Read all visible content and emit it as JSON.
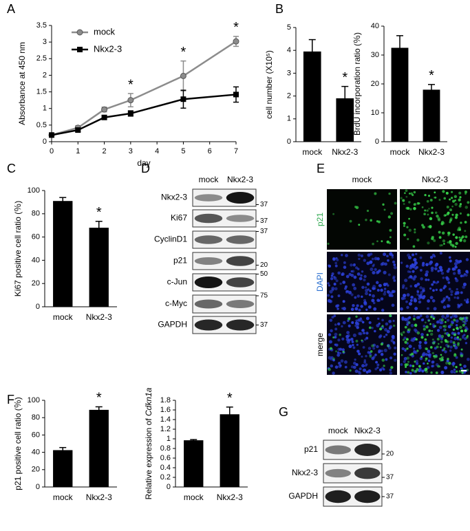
{
  "panel_labels": [
    "A",
    "B",
    "C",
    "D",
    "E",
    "F",
    "G"
  ],
  "chart_data": [
    {
      "type": "line",
      "x": [
        0,
        1,
        2,
        3,
        5,
        7
      ],
      "xlabel": "day",
      "ylabel": "Absorbance at 450 nm",
      "xlim": [
        0,
        7
      ],
      "xticks": [
        0,
        1,
        2,
        3,
        4,
        5,
        6,
        7
      ],
      "ylim": [
        0,
        3.5
      ],
      "yticks": [
        0,
        0.5,
        1,
        1.5,
        2,
        2.5,
        3,
        3.5
      ],
      "series": [
        {
          "name": "mock",
          "color": "#8c8c8c",
          "values": [
            0.2,
            0.42,
            0.97,
            1.25,
            1.98,
            3.02
          ],
          "errors": [
            0.05,
            0.06,
            0.07,
            0.2,
            0.45,
            0.15
          ]
        },
        {
          "name": "Nkx2-3",
          "color": "#000000",
          "values": [
            0.2,
            0.35,
            0.73,
            0.85,
            1.28,
            1.42
          ],
          "errors": [
            0.03,
            0.05,
            0.06,
            0.08,
            0.27,
            0.23
          ]
        }
      ],
      "annotations": [
        {
          "text": "*",
          "x": 3
        },
        {
          "text": "*",
          "x": 5
        },
        {
          "text": "*",
          "x": 7
        }
      ]
    },
    {
      "type": "bar",
      "categories": [
        "mock",
        "Nkx2-3"
      ],
      "values": [
        3.95,
        1.9
      ],
      "errors": [
        0.52,
        0.52
      ],
      "color": "#000000",
      "ylabel": "cell number (X10⁵)",
      "ylim": [
        0,
        5
      ],
      "yticks": [
        0,
        1,
        2,
        3,
        4,
        5
      ],
      "annotations": [
        {
          "text": "*",
          "category": "Nkx2-3"
        }
      ]
    },
    {
      "type": "bar",
      "categories": [
        "mock",
        "Nkx2-3"
      ],
      "values": [
        32.5,
        18
      ],
      "errors": [
        4.2,
        1.8
      ],
      "color": "#000000",
      "ylabel": "BrdU incorporation ratio (％)",
      "ylim": [
        0,
        40
      ],
      "yticks": [
        0,
        10,
        20,
        30,
        40
      ],
      "annotations": [
        {
          "text": "*",
          "category": "Nkx2-3"
        }
      ]
    },
    {
      "type": "bar",
      "categories": [
        "mock",
        "Nkx2-3"
      ],
      "values": [
        91,
        68
      ],
      "errors": [
        3,
        5.5
      ],
      "color": "#000000",
      "ylabel": "Ki67 positive cell ratio (％)",
      "ylim": [
        0,
        100
      ],
      "yticks": [
        0,
        20,
        40,
        60,
        80,
        100
      ],
      "annotations": [
        {
          "text": "*",
          "category": "Nkx2-3"
        }
      ]
    },
    {
      "type": "bar",
      "categories": [
        "mock",
        "Nkx2-3"
      ],
      "values": [
        42.5,
        89
      ],
      "errors": [
        3,
        3.5
      ],
      "color": "#000000",
      "ylabel": "p21  positive cell ratio (％)",
      "ylim": [
        0,
        100
      ],
      "yticks": [
        0,
        20,
        40,
        60,
        80,
        100
      ],
      "annotations": [
        {
          "text": "*",
          "category": "Nkx2-3"
        }
      ]
    },
    {
      "type": "bar",
      "categories": [
        "mock",
        "Nkx2-3"
      ],
      "values": [
        0.97,
        1.51
      ],
      "errors": [
        0.015,
        0.15
      ],
      "color": "#000000",
      "ylabel": [
        "Relative expression of ",
        "Cdkn1a"
      ],
      "ylim": [
        0,
        1.8
      ],
      "yticks": [
        0,
        0.2,
        0.4,
        0.6,
        0.8,
        1,
        1.2,
        1.4,
        1.6,
        1.8
      ],
      "annotations": [
        {
          "text": "*",
          "category": "Nkx2-3"
        }
      ]
    }
  ],
  "blot_D": {
    "columns": [
      "mock",
      "Nkx2-3"
    ],
    "rows": [
      {
        "label": "Nkx2-3",
        "marker": 37
      },
      {
        "label": "Ki67",
        "marker": 37
      },
      {
        "label": "CyclinD1",
        "marker": 37
      },
      {
        "label": "p21",
        "marker": 20
      },
      {
        "label": "c-Jun",
        "marker": 50
      },
      {
        "label": "c-Myc",
        "marker": 75
      },
      {
        "label": "GAPDH",
        "marker": 37
      }
    ]
  },
  "microscopy_E": {
    "columns": [
      "mock",
      "Nkx2-3"
    ],
    "rows": [
      "p21",
      "DAPI",
      "merge"
    ]
  },
  "blot_G": {
    "columns": [
      "mock",
      "Nkx2-3"
    ],
    "rows": [
      {
        "label": "p21",
        "marker": 20
      },
      {
        "label": "Nkx2-3",
        "marker": 37
      },
      {
        "label": "GAPDH",
        "marker": 37
      }
    ]
  }
}
